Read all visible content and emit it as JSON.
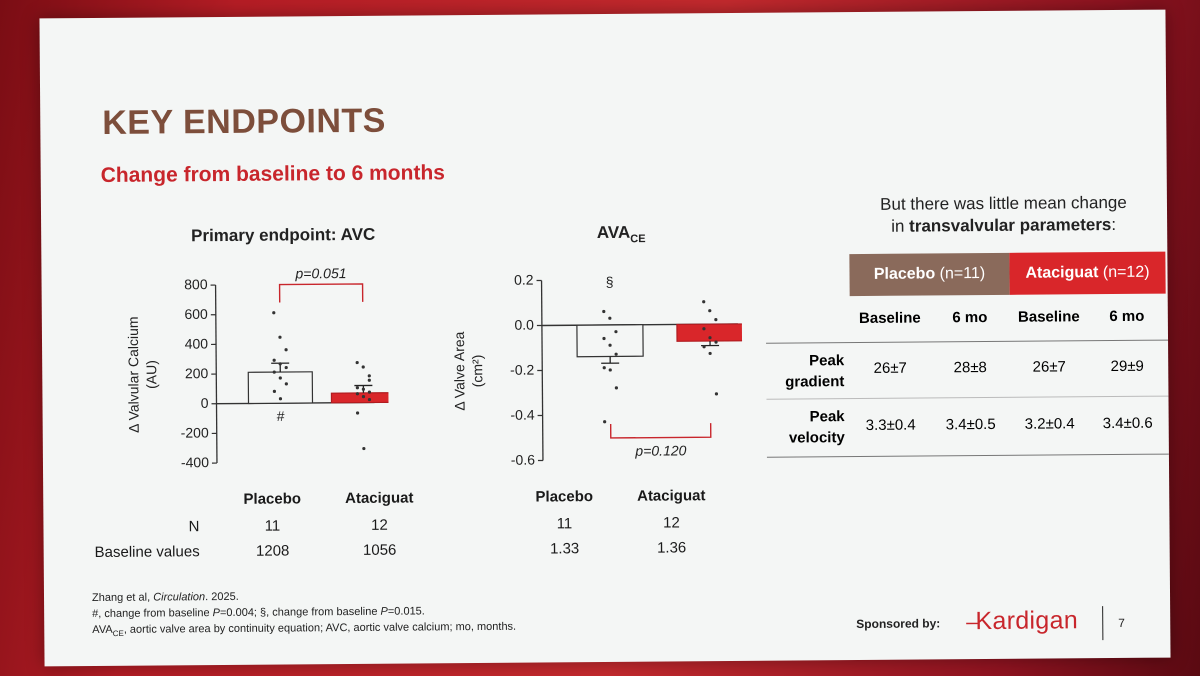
{
  "slide": {
    "title": "KEY ENDPOINTS",
    "subtitle": "Change from baseline to 6 months",
    "accent_color": "#c8262c",
    "title_color": "#7d4e3b"
  },
  "chart_data": [
    {
      "type": "bar",
      "title": "Primary endpoint: AVC",
      "ylabel": "Δ Valvular Calcium (AU)",
      "ylabel_line1": "Δ Valvular Calcium",
      "ylabel_line2": "(AU)",
      "ylim": [
        -400,
        800
      ],
      "yticks": [
        800,
        600,
        400,
        200,
        0,
        -200,
        -400
      ],
      "ytick_labels": [
        "800",
        "600",
        "400",
        "200",
        "0",
        "-200",
        "-400"
      ],
      "categories": [
        "Placebo",
        "Ataciguat"
      ],
      "values": [
        210,
        65
      ],
      "errors": [
        60,
        50
      ],
      "bar_colors": [
        "#f4f6f5",
        "#d9262a"
      ],
      "points": [
        [
          610,
          445,
          360,
          290,
          265,
          240,
          210,
          170,
          130,
          80,
          30
        ],
        [
          270,
          240,
          180,
          100,
          90,
          70,
          60,
          40,
          20,
          -70,
          -310,
          150
        ]
      ],
      "annotations": {
        "p_value": "p=0.051",
        "placebo_mark": "#"
      }
    },
    {
      "type": "bar",
      "title": "AVA",
      "title_sub": "CE",
      "ylabel": "Δ Valve Area (cm²)",
      "ylabel_line1": "Δ Valve Area",
      "ylabel_line2": "(cm²)",
      "ylim": [
        -0.6,
        0.2
      ],
      "yticks": [
        0.2,
        0.0,
        -0.2,
        -0.4,
        -0.6
      ],
      "ytick_labels": [
        "0.2",
        "0.0",
        "-0.2",
        "-0.4",
        "-0.6"
      ],
      "categories": [
        "Placebo",
        "Ataciguat"
      ],
      "values": [
        -0.14,
        -0.075
      ],
      "errors": [
        0.03,
        0.02
      ],
      "bar_colors": [
        "#f4f6f5",
        "#d9262a"
      ],
      "points": [
        [
          0.06,
          0.03,
          -0.03,
          -0.06,
          -0.09,
          -0.13,
          -0.19,
          -0.2,
          -0.28,
          -0.43
        ],
        [
          0.1,
          0.06,
          0.02,
          -0.02,
          -0.06,
          -0.08,
          -0.1,
          -0.13,
          -0.31
        ]
      ],
      "annotations": {
        "p_value": "p=0.120",
        "placebo_mark": "§"
      }
    }
  ],
  "left_table": {
    "headers": [
      "Placebo",
      "Ataciguat"
    ],
    "rows": [
      {
        "label": "N",
        "values": [
          "11",
          "12"
        ]
      },
      {
        "label": "Baseline values",
        "values": [
          "1208",
          "1056"
        ]
      }
    ]
  },
  "mid_table": {
    "headers": [
      "Placebo",
      "Ataciguat"
    ],
    "rows": [
      {
        "values": [
          "11",
          "12"
        ]
      },
      {
        "values": [
          "1.33",
          "1.36"
        ]
      }
    ]
  },
  "right_panel": {
    "header_line1": "But there was little mean change",
    "header_line2_prefix": "in ",
    "header_line2_bold": "transvalvular parameters",
    "header_line2_suffix": ":",
    "placebo_group": "Placebo",
    "placebo_n": "(n=11)",
    "ataciguat_group": "Ataciguat",
    "ataciguat_n": "(n=12)",
    "placebo_color": "#8a6a5b",
    "ataciguat_color": "#d9262a",
    "subheaders": [
      "Baseline",
      "6 mo",
      "Baseline",
      "6 mo"
    ],
    "rows": [
      {
        "label_line1": "Peak",
        "label_line2": "gradient",
        "values": [
          "26±7",
          "28±8",
          "26±7",
          "29±9"
        ]
      },
      {
        "label_line1": "Peak",
        "label_line2": "velocity",
        "values": [
          "3.3±0.4",
          "3.4±0.5",
          "3.2±0.4",
          "3.4±0.6"
        ]
      }
    ]
  },
  "footer": {
    "citation_author": "Zhang et al, ",
    "citation_journal": "Circulation",
    "citation_year": ". 2025.",
    "note_line2_a": "#, change from baseline ",
    "note_line2_p1": "P",
    "note_line2_b": "=0.004; §, change from baseline ",
    "note_line2_p2": "P",
    "note_line2_c": "=0.015.",
    "note_line3_a": "AVA",
    "note_line3_sub": "CE",
    "note_line3_b": ", aortic valve area by continuity equation; AVC, aortic valve calcium; mo, months."
  },
  "sponsor": {
    "label": "Sponsored by:",
    "logo_text": "Kardigan",
    "page_number": "7"
  }
}
